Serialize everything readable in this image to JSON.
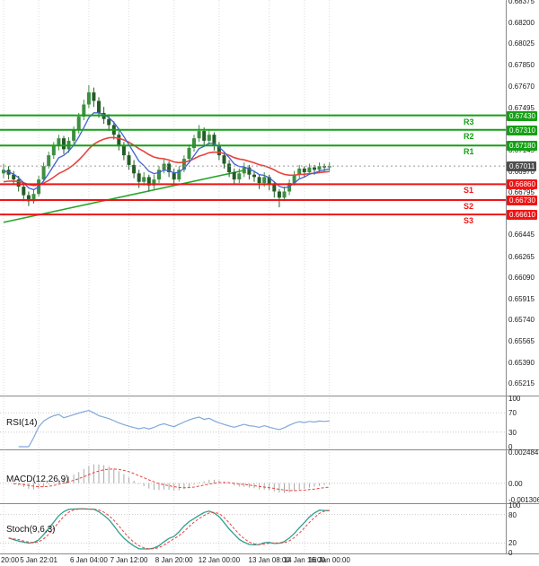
{
  "chart_data": {
    "type": "candlestick",
    "description": "4-hour candlestick price chart with pivot support/resistance levels, moving averages, a rising trendline and RSI, MACD, Stochastic indicator panels",
    "price_axis": {
      "min": 0.65112,
      "max": 0.68384,
      "ticks": [
        "0.68375",
        "0.68200",
        "0.68025",
        "0.67850",
        "0.67670",
        "0.67495",
        "0.67145",
        "0.66970",
        "0.66795",
        "0.66445",
        "0.66265",
        "0.66090",
        "0.65915",
        "0.65740",
        "0.65565",
        "0.65390",
        "0.65215"
      ]
    },
    "time_axis": {
      "labels": [
        "20:00",
        "5 Jan 22:01",
        "6 Jan 04:00",
        "7 Jan 12:00",
        "8 Jan 20:00",
        "12 Jan 00:00",
        "13 Jan 08:00",
        "14 Jan 16:00",
        "16 Jan 00:00"
      ],
      "candle_indices": [
        0,
        7,
        17,
        25,
        34,
        43,
        53,
        60,
        65
      ]
    },
    "candles": [
      [
        0.6695,
        0.6703,
        0.6691,
        0.6698
      ],
      [
        0.6698,
        0.6701,
        0.669,
        0.6694
      ],
      [
        0.6694,
        0.6697,
        0.6686,
        0.669
      ],
      [
        0.669,
        0.6693,
        0.668,
        0.6684
      ],
      [
        0.6684,
        0.6686,
        0.6672,
        0.6677
      ],
      [
        0.6677,
        0.668,
        0.6668,
        0.6672
      ],
      [
        0.6672,
        0.6682,
        0.667,
        0.6678
      ],
      [
        0.6678,
        0.6693,
        0.6676,
        0.669
      ],
      [
        0.669,
        0.6704,
        0.6688,
        0.6701
      ],
      [
        0.6701,
        0.6713,
        0.6699,
        0.671
      ],
      [
        0.671,
        0.6721,
        0.6707,
        0.6718
      ],
      [
        0.6718,
        0.6727,
        0.6714,
        0.6724
      ],
      [
        0.6724,
        0.6726,
        0.6711,
        0.6715
      ],
      [
        0.6715,
        0.6725,
        0.6712,
        0.6722
      ],
      [
        0.6722,
        0.6734,
        0.6719,
        0.6731
      ],
      [
        0.6731,
        0.6745,
        0.6728,
        0.6742
      ],
      [
        0.6742,
        0.6756,
        0.6739,
        0.6752
      ],
      [
        0.6752,
        0.6768,
        0.6749,
        0.6762
      ],
      [
        0.6762,
        0.6766,
        0.675,
        0.6755
      ],
      [
        0.6755,
        0.6758,
        0.6741,
        0.6745
      ],
      [
        0.6745,
        0.675,
        0.6736,
        0.674
      ],
      [
        0.674,
        0.6744,
        0.673,
        0.6735
      ],
      [
        0.6735,
        0.6738,
        0.6723,
        0.6727
      ],
      [
        0.6727,
        0.673,
        0.6714,
        0.6718
      ],
      [
        0.6718,
        0.6721,
        0.6706,
        0.671
      ],
      [
        0.671,
        0.6713,
        0.6698,
        0.6702
      ],
      [
        0.6702,
        0.6706,
        0.6691,
        0.6695
      ],
      [
        0.6695,
        0.6698,
        0.6683,
        0.6688
      ],
      [
        0.6688,
        0.6696,
        0.6685,
        0.6692
      ],
      [
        0.6692,
        0.6694,
        0.668,
        0.6685
      ],
      [
        0.6685,
        0.6694,
        0.6682,
        0.669
      ],
      [
        0.669,
        0.6701,
        0.6687,
        0.6698
      ],
      [
        0.6698,
        0.6707,
        0.6695,
        0.6703
      ],
      [
        0.6703,
        0.6705,
        0.6692,
        0.6696
      ],
      [
        0.6696,
        0.6699,
        0.6686,
        0.669
      ],
      [
        0.669,
        0.6701,
        0.6688,
        0.6698
      ],
      [
        0.6698,
        0.671,
        0.6696,
        0.6707
      ],
      [
        0.6707,
        0.6719,
        0.6704,
        0.6716
      ],
      [
        0.6716,
        0.6727,
        0.6713,
        0.6724
      ],
      [
        0.6724,
        0.6735,
        0.6721,
        0.673
      ],
      [
        0.673,
        0.6733,
        0.6718,
        0.6722
      ],
      [
        0.6722,
        0.6731,
        0.6719,
        0.6727
      ],
      [
        0.6727,
        0.6729,
        0.6714,
        0.6718
      ],
      [
        0.6718,
        0.6721,
        0.6706,
        0.671
      ],
      [
        0.671,
        0.6713,
        0.6699,
        0.6703
      ],
      [
        0.6703,
        0.6706,
        0.6692,
        0.6696
      ],
      [
        0.6696,
        0.6699,
        0.6686,
        0.669
      ],
      [
        0.669,
        0.6699,
        0.6687,
        0.6695
      ],
      [
        0.6695,
        0.6704,
        0.6692,
        0.67
      ],
      [
        0.67,
        0.6702,
        0.669,
        0.6694
      ],
      [
        0.6694,
        0.6697,
        0.6688,
        0.6692
      ],
      [
        0.6692,
        0.6694,
        0.6682,
        0.6687
      ],
      [
        0.6687,
        0.6696,
        0.6684,
        0.6692
      ],
      [
        0.6692,
        0.6694,
        0.6681,
        0.6686
      ],
      [
        0.6686,
        0.6688,
        0.6675,
        0.668
      ],
      [
        0.668,
        0.6682,
        0.6667,
        0.6675
      ],
      [
        0.6675,
        0.6684,
        0.6672,
        0.668
      ],
      [
        0.668,
        0.669,
        0.6677,
        0.6687
      ],
      [
        0.6687,
        0.6697,
        0.6685,
        0.6694
      ],
      [
        0.6694,
        0.6702,
        0.6691,
        0.6699
      ],
      [
        0.6699,
        0.6701,
        0.6692,
        0.6696
      ],
      [
        0.6696,
        0.6703,
        0.6694,
        0.67
      ],
      [
        0.67,
        0.6702,
        0.6694,
        0.6698
      ],
      [
        0.6698,
        0.6704,
        0.6696,
        0.6701
      ],
      [
        0.6701,
        0.6703,
        0.6696,
        0.67
      ],
      [
        0.67,
        0.6704,
        0.6697,
        0.67011
      ]
    ],
    "pivot_levels": {
      "resistance": [
        {
          "name": "R3",
          "price": 0.6743
        },
        {
          "name": "R2",
          "price": 0.6731
        },
        {
          "name": "R1",
          "price": 0.6718
        }
      ],
      "support": [
        {
          "name": "S1",
          "price": 0.6686
        },
        {
          "name": "S2",
          "price": 0.6673
        },
        {
          "name": "S3",
          "price": 0.6661
        }
      ],
      "current_price": "0.67011"
    },
    "trendline": {
      "from_index": 0,
      "from_price": 0.66545,
      "to_index": 48,
      "to_price": 0.66975
    },
    "moving_averages": [
      {
        "name": "slow-ma",
        "period": 20,
        "seed": 0.6688,
        "color": "#e8423c",
        "width": 1.6
      },
      {
        "name": "fast-ma",
        "period": 6,
        "seed": 0.6697,
        "color": "#3f62d0",
        "width": 1.3
      }
    ],
    "indicator_panels": {
      "rsi": {
        "label": "RSI(14)",
        "period": 14,
        "axis_ticks": [
          "100",
          "70",
          "30",
          "0"
        ],
        "axis_values": [
          100,
          70,
          30,
          0
        ],
        "level_lines": [
          70,
          30
        ]
      },
      "macd": {
        "label": "MACD(12,26,9)",
        "fast": 12,
        "slow": 26,
        "signal": 9,
        "axis_ticks": [
          "0.002484",
          "0.00",
          "-0.001306"
        ],
        "axis_values": [
          0.002484,
          0,
          -0.001306
        ]
      },
      "stoch": {
        "label": "Stoch(9,6,3)",
        "k_period": 9,
        "slowing": 6,
        "d_period": 3,
        "axis_ticks": [
          "100",
          "80",
          "20",
          "0"
        ],
        "axis_values": [
          100,
          80,
          20,
          0
        ],
        "level_lines": [
          80,
          20
        ]
      }
    },
    "colors": {
      "up": "#3e8e41",
      "down": "#245c27",
      "resistance": "#14a014",
      "support": "#ef1515",
      "current_box": "#4d4d4d",
      "current_line": "#999999",
      "trend": "#28a428",
      "rsi": "#7fa8d9",
      "macd_hist": "#a8a8a8",
      "macd_signal": "#e8423c",
      "stoch_k": "#2f9e8f",
      "stoch_d": "#e8423c",
      "grid": "#dcdcdc",
      "separator": "#8a8a8a"
    }
  }
}
